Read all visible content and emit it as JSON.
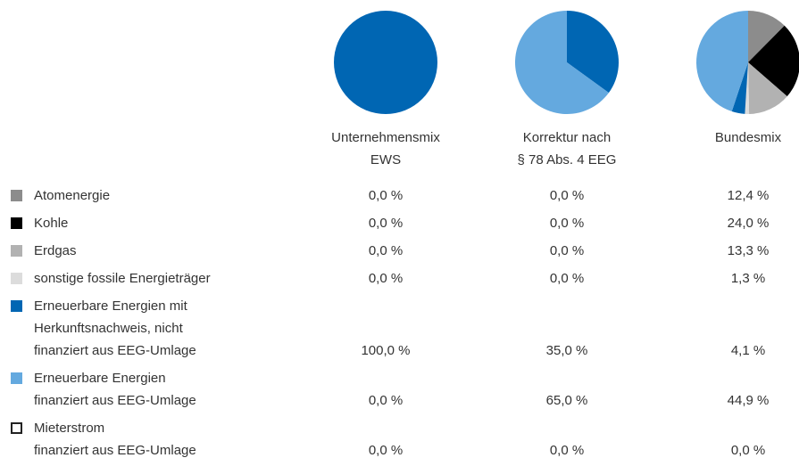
{
  "chart_data": {
    "type": "pie",
    "categories": [
      "Atomenergie",
      "Kohle",
      "Erdgas",
      "sonstige fossile Energieträger",
      "Erneuerbare Energien mit\nHerkunftsnachweis, nicht\nfinanziert aus EEG-Umlage",
      "Erneuerbare Energien\nfinanziert aus EEG-Umlage",
      "Mieterstrom\nfinanziert aus EEG-Umlage"
    ],
    "colors": [
      "#8c8c8c",
      "#000000",
      "#b2b2b2",
      "#dcdcdc",
      "#0066b3",
      "#64a9df",
      "#ffffff"
    ],
    "series": [
      {
        "name": "Unternehmensmix\nEWS",
        "values": [
          0,
          0,
          0,
          0,
          100,
          0,
          0
        ],
        "value_labels": [
          "0,0 %",
          "0,0 %",
          "0,0 %",
          "0,0 %",
          "100,0 %",
          "0,0 %",
          "0,0 %"
        ]
      },
      {
        "name": "Korrektur nach\n§ 78 Abs. 4 EEG",
        "values": [
          0,
          0,
          0,
          0,
          35,
          65,
          0
        ],
        "value_labels": [
          "0,0 %",
          "0,0 %",
          "0,0 %",
          "0,0 %",
          "35,0 %",
          "65,0 %",
          "0,0 %"
        ]
      },
      {
        "name": "Bundesmix",
        "values": [
          12.4,
          24,
          13.3,
          1.3,
          4.1,
          44.9,
          0
        ],
        "value_labels": [
          "12,4 %",
          "24,0 %",
          "13,3 %",
          "1,3 %",
          "4,1 %",
          "44,9 %",
          "0,0 %"
        ]
      }
    ]
  }
}
